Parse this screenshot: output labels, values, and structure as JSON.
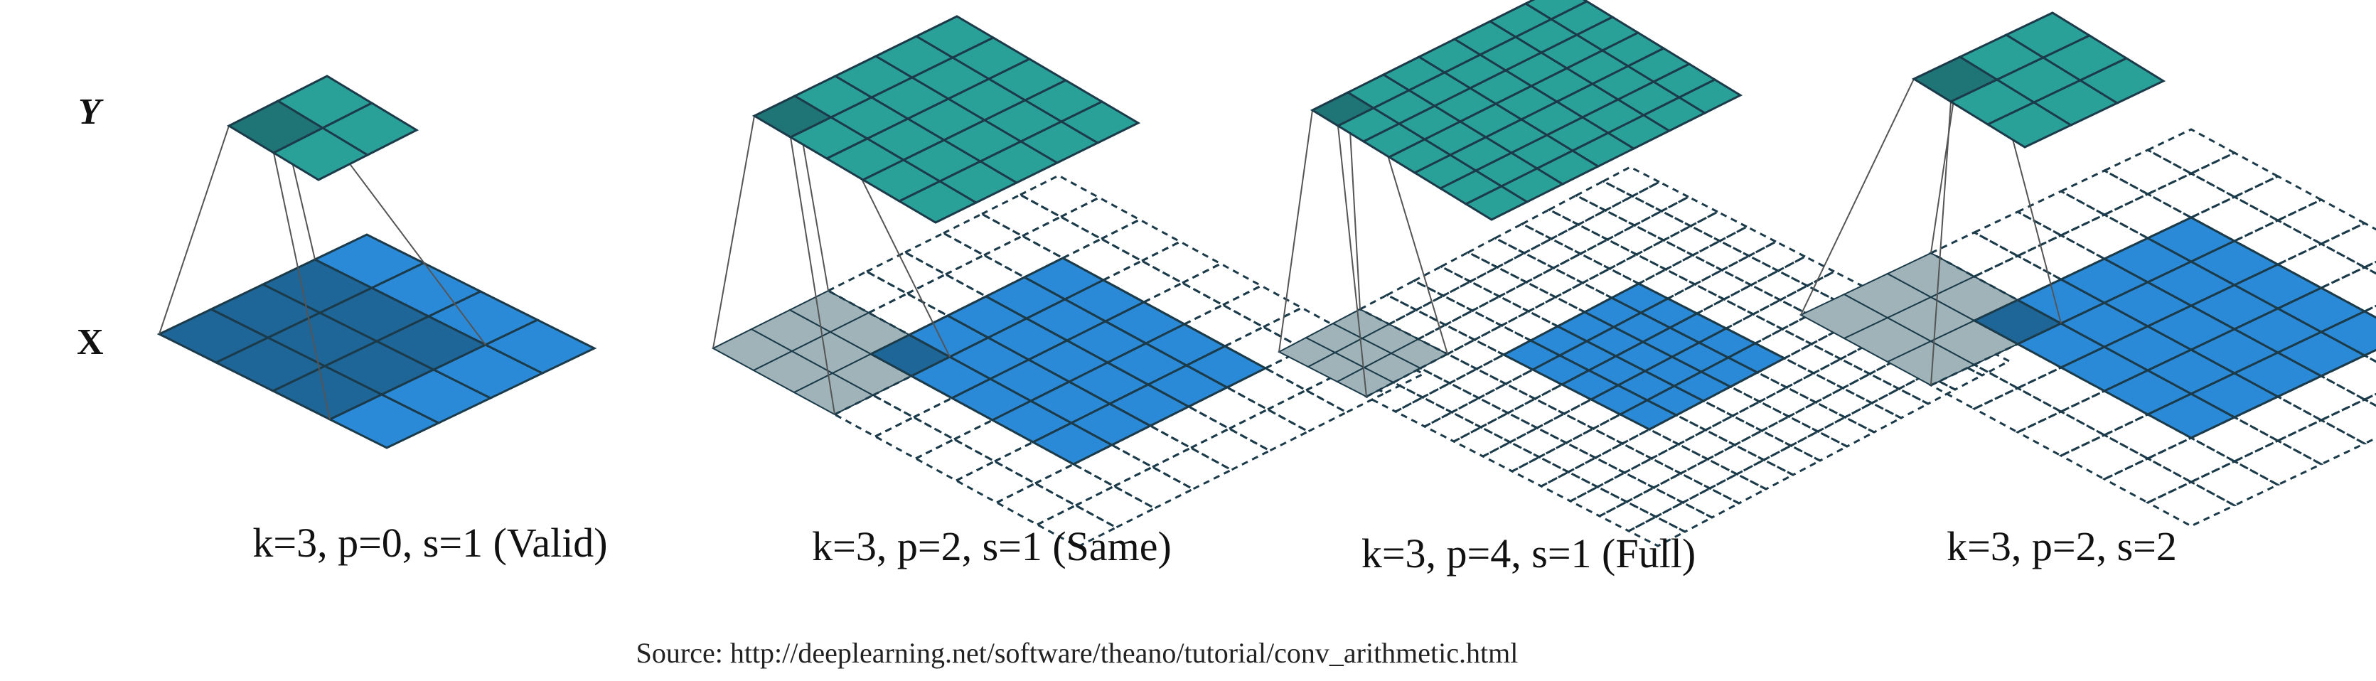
{
  "axis_labels": {
    "y": "Y",
    "x": "X"
  },
  "panels": [
    {
      "caption": "k=3, p=0, s=1 (Valid)",
      "kernel": 3,
      "padding": 0,
      "stride": 1,
      "input_size": 4,
      "output_size": 2
    },
    {
      "caption": "k=3, p=2, s=1 (Same)",
      "kernel": 3,
      "padding": 2,
      "stride": 1,
      "input_size": 5,
      "output_size": 5
    },
    {
      "caption": "k=3, p=4, s=1 (Full)",
      "kernel": 3,
      "padding": 4,
      "stride": 1,
      "input_size": 5,
      "output_size": 7
    },
    {
      "caption": "k=3, p=2, s=2",
      "kernel": 3,
      "padding": 2,
      "stride": 2,
      "input_size": 5,
      "output_size": 3
    }
  ],
  "source": "Source: http://deeplearning.net/software/theano/tutorial/conv_arithmetic.html",
  "colors": {
    "output": "#2aa198",
    "output_highlight": "#1f7575",
    "input": "#2b8ad8",
    "input_highlight": "#1e6598",
    "padding_kernel": "#9fb3b8",
    "grid_line": "#1b3b4a"
  }
}
